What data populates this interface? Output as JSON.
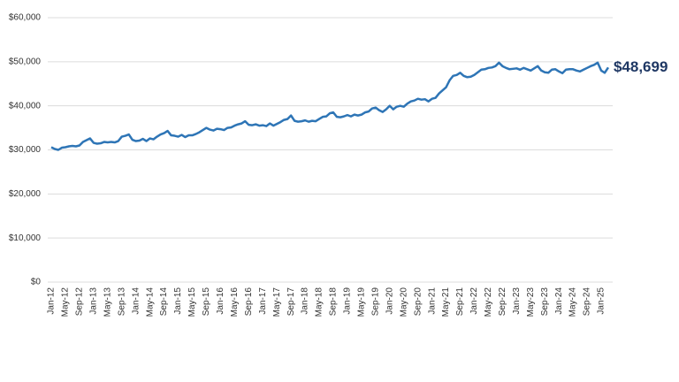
{
  "chart_data": {
    "type": "line",
    "color": "#2e75b6",
    "grid": true,
    "ylim": [
      0,
      60000
    ],
    "yticks": [
      {
        "value": 0,
        "label": "$0"
      },
      {
        "value": 10000,
        "label": "$10,000"
      },
      {
        "value": 20000,
        "label": "$20,000"
      },
      {
        "value": 30000,
        "label": "$30,000"
      },
      {
        "value": 40000,
        "label": "$40,000"
      },
      {
        "value": 50000,
        "label": "$50,000"
      },
      {
        "value": 60000,
        "label": "$60,000"
      }
    ],
    "categories": [
      "Jan-12",
      null,
      null,
      null,
      "May-12",
      null,
      null,
      null,
      "Sep-12",
      null,
      null,
      null,
      "Jan-13",
      null,
      null,
      null,
      "May-13",
      null,
      null,
      null,
      "Sep-13",
      null,
      null,
      null,
      "Jan-14",
      null,
      null,
      null,
      "May-14",
      null,
      null,
      null,
      "Sep-14",
      null,
      null,
      null,
      "Jan-15",
      null,
      null,
      null,
      "May-15",
      null,
      null,
      null,
      "Sep-15",
      null,
      null,
      null,
      "Jan-16",
      null,
      null,
      null,
      "May-16",
      null,
      null,
      null,
      "Sep-16",
      null,
      null,
      null,
      "Jan-17",
      null,
      null,
      null,
      "May-17",
      null,
      null,
      null,
      "Sep-17",
      null,
      null,
      null,
      "Jan-18",
      null,
      null,
      null,
      "May-18",
      null,
      null,
      null,
      "Sep-18",
      null,
      null,
      null,
      "Jan-19",
      null,
      null,
      null,
      "May-19",
      null,
      null,
      null,
      "Sep-19",
      null,
      null,
      null,
      "Jan-20",
      null,
      null,
      null,
      "May-20",
      null,
      null,
      null,
      "Sep-20",
      null,
      null,
      null,
      "Jan-21",
      null,
      null,
      null,
      "May-21",
      null,
      null,
      null,
      "Sep-21",
      null,
      null,
      null,
      "Jan-22",
      null,
      null,
      null,
      "May-22",
      null,
      null,
      null,
      "Sep-22",
      null,
      null,
      null,
      "Jan-23",
      null,
      null,
      null,
      "May-23",
      null,
      null,
      null,
      "Sep-23",
      null,
      null,
      null,
      "Jan-24",
      null,
      null,
      null,
      "May-24",
      null,
      null,
      null,
      "Sep-24",
      null,
      null,
      null,
      "Jan-25",
      null,
      null
    ],
    "values": [
      30600,
      30200,
      30000,
      30500,
      30600,
      30800,
      30900,
      30800,
      31000,
      31800,
      32200,
      32600,
      31600,
      31400,
      31500,
      31800,
      31700,
      31800,
      31700,
      32000,
      33000,
      33200,
      33500,
      32300,
      32000,
      32100,
      32500,
      32000,
      32600,
      32400,
      33000,
      33500,
      33800,
      34300,
      33300,
      33200,
      33000,
      33400,
      32900,
      33300,
      33300,
      33600,
      34000,
      34500,
      35000,
      34600,
      34400,
      34800,
      34700,
      34500,
      35000,
      35100,
      35500,
      35800,
      36000,
      36500,
      35700,
      35600,
      35800,
      35500,
      35600,
      35400,
      36000,
      35500,
      35900,
      36300,
      36800,
      37000,
      37800,
      36600,
      36400,
      36500,
      36700,
      36400,
      36600,
      36500,
      37000,
      37500,
      37600,
      38300,
      38500,
      37500,
      37400,
      37600,
      37900,
      37600,
      38000,
      37800,
      38000,
      38500,
      38700,
      39400,
      39600,
      39000,
      38600,
      39200,
      40000,
      39200,
      39800,
      40000,
      39800,
      40500,
      41000,
      41200,
      41600,
      41400,
      41500,
      41000,
      41600,
      41800,
      42800,
      43500,
      44200,
      45800,
      46800,
      47000,
      47500,
      46800,
      46500,
      46600,
      47000,
      47600,
      48200,
      48300,
      48600,
      48700,
      49000,
      49800,
      49000,
      48600,
      48300,
      48400,
      48500,
      48200,
      48600,
      48300,
      48000,
      48500,
      49000,
      48000,
      47600,
      47500,
      48200,
      48300,
      47800,
      47400,
      48200,
      48300,
      48300,
      48000,
      47800,
      48200,
      48600,
      49000,
      49300,
      49800,
      48000,
      47500,
      48699
    ],
    "value_labels": [
      null,
      null,
      null,
      null,
      null,
      null,
      null,
      null,
      null,
      null,
      null,
      null,
      null,
      null,
      null,
      null,
      null,
      null,
      null,
      null,
      null,
      null,
      null,
      null,
      null,
      null,
      null,
      null,
      null,
      null,
      null,
      null,
      null,
      null,
      null,
      null,
      null,
      null,
      null,
      null,
      null,
      null,
      null,
      null,
      null,
      null,
      null,
      null,
      null,
      null,
      null,
      null,
      null,
      null,
      null,
      null,
      null,
      null,
      null,
      null,
      null,
      null,
      null,
      null,
      null,
      null,
      null,
      null,
      null,
      null,
      null,
      null,
      null,
      null,
      null,
      null,
      null,
      null,
      null,
      null,
      null,
      null,
      null,
      null,
      null,
      null,
      null,
      null,
      null,
      null,
      null,
      null,
      null,
      null,
      null,
      null,
      null,
      null,
      null,
      null,
      null,
      null,
      null,
      null,
      null,
      null,
      null,
      null,
      null,
      null,
      null,
      null,
      null,
      null,
      null,
      null,
      null,
      null,
      null,
      null,
      null,
      null,
      null,
      null,
      null,
      null,
      null,
      null,
      null,
      null,
      null,
      null,
      null,
      null,
      null,
      null,
      null,
      null,
      null,
      null,
      null,
      null,
      null,
      null,
      null,
      null,
      null,
      null,
      null,
      null,
      null,
      null,
      null,
      null,
      null,
      null,
      null,
      null,
      "$48,699"
    ]
  }
}
